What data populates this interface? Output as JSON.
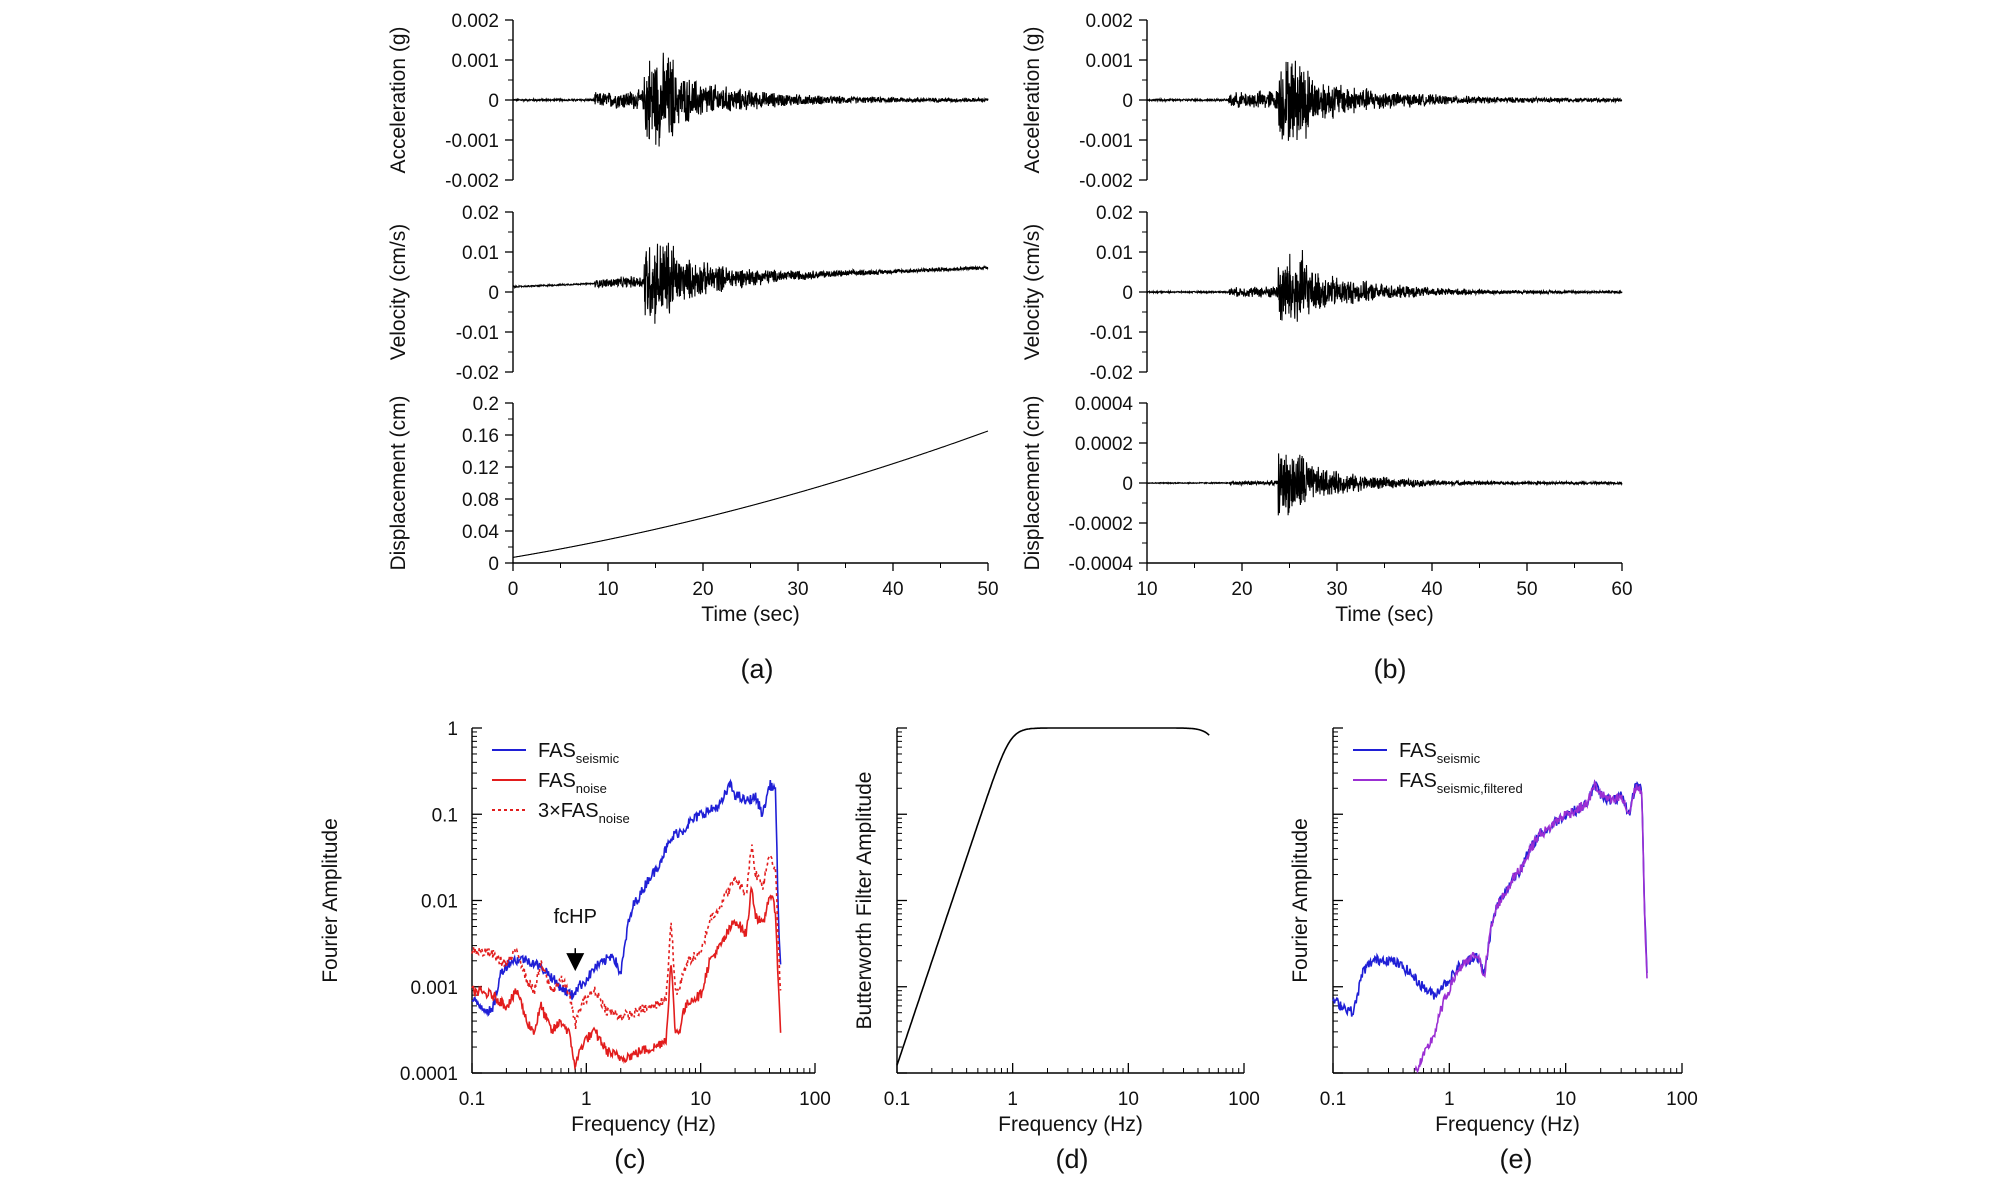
{
  "figure_labels": {
    "a": "(a)",
    "b": "(b)",
    "c": "(c)",
    "d": "(d)",
    "e": "(e)"
  },
  "chart_data": [
    {
      "id": "a-acc",
      "type": "line",
      "ylabel": "Acceleration (g)",
      "xlim": [
        0,
        50
      ],
      "ylim": [
        -0.002,
        0.002
      ],
      "yticks": [
        -0.002,
        -0.001,
        0,
        0.001,
        0.002
      ],
      "ytick_labels": [
        "-0.002",
        "-0.001",
        "0",
        "0.001",
        "0.002"
      ],
      "series": [
        {
          "color": "#000000",
          "values": [],
          "x": []
        }
      ],
      "envelope": {
        "t0": 0,
        "t1": 50,
        "onset": 8.6,
        "peak": 15,
        "noise": 3e-05,
        "pre": 0.0002,
        "peak_amp": 0.0013,
        "tail": 5e-05,
        "decay": 7,
        "offset": 0,
        "drift": 0,
        "curve": 0
      }
    },
    {
      "id": "a-vel",
      "type": "line",
      "ylabel": "Velocity (cm/s)",
      "xlim": [
        0,
        50
      ],
      "ylim": [
        -0.02,
        0.02
      ],
      "yticks": [
        -0.02,
        -0.01,
        0,
        0.01,
        0.02
      ],
      "ytick_labels": [
        "-0.02",
        "-0.01",
        "0",
        "0.01",
        "0.02"
      ],
      "series": [
        {
          "color": "#000000"
        }
      ],
      "envelope": {
        "t0": 0,
        "t1": 50,
        "onset": 8.6,
        "peak": 15,
        "noise": 0.0002,
        "pre": 0.0012,
        "peak_amp": 0.012,
        "tail": 0.0004,
        "decay": 7,
        "offset": 0.0013,
        "drift": 0.0048,
        "curve": 0
      }
    },
    {
      "id": "a-disp",
      "type": "line",
      "ylabel": "Displacement (cm)",
      "xlabel": "Time (sec)",
      "xlim": [
        0,
        50
      ],
      "ylim": [
        0,
        0.2
      ],
      "xticks": [
        0,
        10,
        20,
        30,
        40,
        50
      ],
      "xtick_labels": [
        "0",
        "10",
        "20",
        "30",
        "40",
        "50"
      ],
      "yticks": [
        0,
        0.04,
        0.08,
        0.12,
        0.16,
        0.2
      ],
      "ytick_labels": [
        "0",
        "0.04",
        "0.08",
        "0.12",
        "0.16",
        "0.2"
      ],
      "series": [
        {
          "color": "#000000"
        }
      ],
      "envelope": {
        "t0": 0,
        "t1": 50,
        "onset": 100,
        "peak": 100,
        "noise": 0,
        "pre": 0,
        "peak_amp": 0,
        "tail": 0,
        "decay": 7,
        "offset": 0.007,
        "drift": 0.1,
        "curve": 0.058
      }
    },
    {
      "id": "b-acc",
      "type": "line",
      "ylabel": "Acceleration (g)",
      "xlim": [
        10,
        60
      ],
      "ylim": [
        -0.002,
        0.002
      ],
      "yticks": [
        -0.002,
        -0.001,
        0,
        0.001,
        0.002
      ],
      "ytick_labels": [
        "-0.002",
        "-0.001",
        "0",
        "0.001",
        "0.002"
      ],
      "series": [
        {
          "color": "#000000"
        }
      ],
      "envelope": {
        "t0": 10,
        "t1": 60,
        "onset": 18.6,
        "peak": 25,
        "noise": 3e-05,
        "pre": 0.0002,
        "peak_amp": 0.0012,
        "tail": 5e-05,
        "decay": 7,
        "offset": 0,
        "drift": 0,
        "curve": 0
      }
    },
    {
      "id": "b-vel",
      "type": "line",
      "ylabel": "Velocity (cm/s)",
      "xlim": [
        10,
        60
      ],
      "ylim": [
        -0.02,
        0.02
      ],
      "yticks": [
        -0.02,
        -0.01,
        0,
        0.01,
        0.02
      ],
      "ytick_labels": [
        "-0.02",
        "-0.01",
        "0",
        "0.01",
        "0.02"
      ],
      "series": [
        {
          "color": "#000000"
        }
      ],
      "envelope": {
        "t0": 10,
        "t1": 60,
        "onset": 18.6,
        "peak": 25,
        "noise": 0.0002,
        "pre": 0.0012,
        "peak_amp": 0.011,
        "tail": 0.0003,
        "decay": 7,
        "offset": 0,
        "drift": 0,
        "curve": 0
      }
    },
    {
      "id": "b-disp",
      "type": "line",
      "ylabel": "Displacement (cm)",
      "xlabel": "Time (sec)",
      "xlim": [
        10,
        60
      ],
      "ylim": [
        -0.0004,
        0.0004
      ],
      "xticks": [
        10,
        20,
        30,
        40,
        50,
        60
      ],
      "xtick_labels": [
        "10",
        "20",
        "30",
        "40",
        "50",
        "60"
      ],
      "yticks": [
        -0.0004,
        -0.0002,
        0,
        0.0002,
        0.0004
      ],
      "ytick_labels": [
        "-0.0004",
        "-0.0002",
        "0",
        "0.0002",
        "0.0004"
      ],
      "series": [
        {
          "color": "#000000"
        }
      ],
      "envelope": {
        "t0": 10,
        "t1": 60,
        "onset": 18.6,
        "peak": 25,
        "noise": 3e-06,
        "pre": 1e-05,
        "peak_amp": 0.00018,
        "tail": 6e-06,
        "decay": 6,
        "offset": 0,
        "drift": 0,
        "curve": 0
      }
    },
    {
      "id": "c",
      "type": "line",
      "xlabel": "Frequency (Hz)",
      "ylabel": "Fourier Amplitude",
      "xscale": "log",
      "yscale": "log",
      "xlim": [
        0.1,
        100
      ],
      "ylim": [
        0.0001,
        1
      ],
      "xticks": [
        0.1,
        1,
        10,
        100
      ],
      "xtick_labels": [
        "0.1",
        "1",
        "10",
        "100"
      ],
      "yticks": [
        0.0001,
        0.001,
        0.01,
        0.1,
        1
      ],
      "ytick_labels": [
        "0.0001",
        "0.001",
        "0.01",
        "0.1",
        "1"
      ],
      "legend_position": "top-left",
      "series": [
        {
          "name": "FAS",
          "sub": "seismic",
          "color": "#1f1fd6",
          "style": "solid",
          "x": [
            0.1,
            0.12,
            0.15,
            0.18,
            0.22,
            0.28,
            0.35,
            0.45,
            0.55,
            0.65,
            0.75,
            0.85,
            1,
            1.2,
            1.4,
            1.7,
            2,
            2.3,
            2.6,
            3,
            3.5,
            4,
            5,
            6,
            7,
            8,
            10,
            12,
            15,
            18,
            20,
            25,
            30,
            35,
            40,
            45,
            48,
            50
          ],
          "values": [
            0.0007,
            0.0006,
            0.0005,
            0.0015,
            0.002,
            0.0021,
            0.0019,
            0.0015,
            0.0011,
            0.0009,
            0.0008,
            0.001,
            0.0012,
            0.0017,
            0.0019,
            0.0024,
            0.0014,
            0.005,
            0.009,
            0.012,
            0.018,
            0.022,
            0.04,
            0.06,
            0.065,
            0.08,
            0.1,
            0.11,
            0.13,
            0.22,
            0.17,
            0.14,
            0.16,
            0.1,
            0.22,
            0.2,
            0.006,
            0.0016
          ]
        },
        {
          "name": "FAS",
          "sub": "noise",
          "color": "#e21d1d",
          "style": "solid",
          "x": [
            0.1,
            0.15,
            0.2,
            0.25,
            0.3,
            0.35,
            0.4,
            0.5,
            0.6,
            0.7,
            0.8,
            0.9,
            1,
            1.2,
            1.5,
            2,
            2.5,
            3,
            4,
            5,
            5.5,
            6,
            6.5,
            7,
            8,
            10,
            12,
            15,
            20,
            25,
            28,
            30,
            35,
            40,
            45,
            50
          ],
          "values": [
            0.0009,
            0.0008,
            0.0006,
            0.0009,
            0.0004,
            0.0003,
            0.0006,
            0.0003,
            0.0004,
            0.0003,
            0.00012,
            0.0002,
            0.00025,
            0.0003,
            0.00018,
            0.00015,
            0.00016,
            0.00018,
            0.0002,
            0.00025,
            0.002,
            0.0003,
            0.0003,
            0.0005,
            0.0007,
            0.0008,
            0.002,
            0.003,
            0.006,
            0.004,
            0.015,
            0.007,
            0.005,
            0.012,
            0.008,
            0.00027
          ]
        },
        {
          "name": "3×FAS",
          "sub": "noise",
          "color": "#e21d1d",
          "style": "dotted",
          "x": [
            0.1,
            0.15,
            0.2,
            0.25,
            0.3,
            0.35,
            0.4,
            0.5,
            0.6,
            0.7,
            0.8,
            0.9,
            1,
            1.2,
            1.5,
            2,
            2.5,
            3,
            4,
            5,
            5.5,
            6,
            6.5,
            7,
            8,
            10,
            12,
            15,
            20,
            25,
            28,
            30,
            35,
            40,
            45,
            50
          ],
          "values": [
            0.0027,
            0.0024,
            0.0018,
            0.0027,
            0.0012,
            0.0009,
            0.0018,
            0.0009,
            0.0012,
            0.0009,
            0.00036,
            0.0006,
            0.00075,
            0.0009,
            0.00054,
            0.00045,
            0.00048,
            0.00054,
            0.0006,
            0.00075,
            0.006,
            0.0009,
            0.0009,
            0.0015,
            0.0021,
            0.0024,
            0.006,
            0.009,
            0.018,
            0.012,
            0.045,
            0.021,
            0.015,
            0.036,
            0.024,
            0.0008
          ]
        }
      ],
      "annotation": {
        "text": "fcHP",
        "x": 0.8,
        "y_text": 0.0055,
        "y_arrow_start": 0.0028,
        "y_arrow_end": 0.0016
      }
    },
    {
      "id": "d",
      "type": "line",
      "xlabel": "Frequency (Hz)",
      "ylabel": "Butterworth Filter Amplitude",
      "xscale": "log",
      "yscale": "log",
      "xlim": [
        0.1,
        100
      ],
      "ylim": [
        0.0001,
        1
      ],
      "xticks": [
        0.1,
        1,
        10,
        100
      ],
      "xtick_labels": [
        "0.1",
        "1",
        "10",
        "100"
      ],
      "yticks": [
        0.0001,
        0.001,
        0.01,
        0.1,
        1
      ],
      "ytick_labels": [],
      "series": [
        {
          "color": "#000000",
          "style": "solid",
          "butterworth": {
            "fc": 0.95,
            "order": 4,
            "lowpass_fc": 55,
            "lowpass_order": 4,
            "f0": 0.1,
            "f1": 50
          }
        }
      ]
    },
    {
      "id": "e",
      "type": "line",
      "xlabel": "Frequency (Hz)",
      "ylabel": "Fourier Amplitude",
      "xscale": "log",
      "yscale": "log",
      "xlim": [
        0.1,
        100
      ],
      "ylim": [
        0.0001,
        1
      ],
      "xticks": [
        0.1,
        1,
        10,
        100
      ],
      "xtick_labels": [
        "0.1",
        "1",
        "10",
        "100"
      ],
      "yticks": [
        0.0001,
        0.001,
        0.01,
        0.1,
        1
      ],
      "ytick_labels": [],
      "legend_position": "top-left",
      "series": [
        {
          "name": "FAS",
          "sub": "seismic",
          "color": "#1f1fd6",
          "style": "solid",
          "ref": "c.0"
        },
        {
          "name": "FAS",
          "sub": "seismic,filtered",
          "color": "#9b2fd3",
          "style": "solid",
          "ref": "c.0",
          "filter": "d.0"
        }
      ]
    }
  ]
}
